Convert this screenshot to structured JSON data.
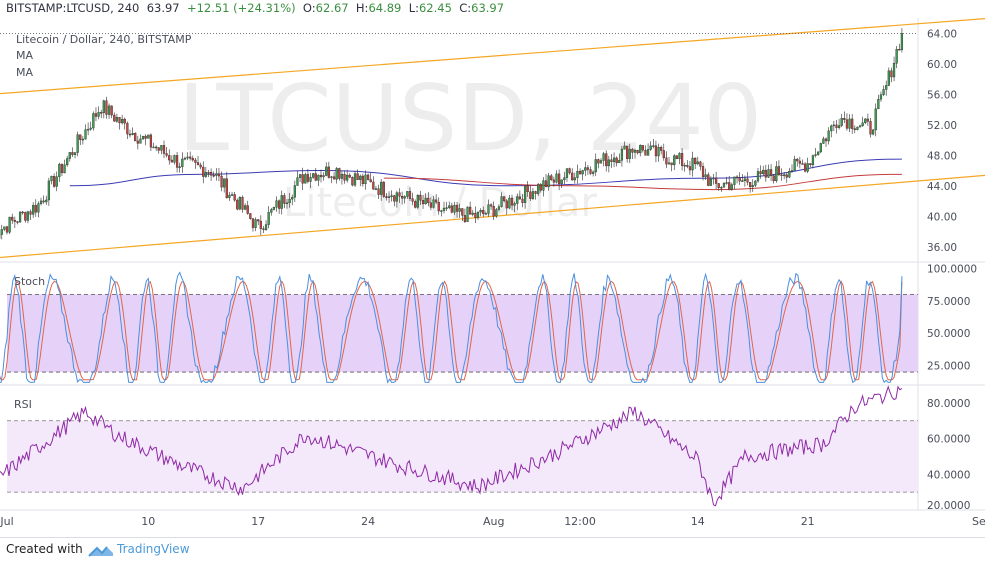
{
  "header": {
    "symbol": "BITSTAMP:LTCUSD, 240",
    "last": "63.97",
    "change": "+12.51 (+24.31%)",
    "open_label": "O:",
    "open": "62.67",
    "high_label": "H:",
    "high": "64.89",
    "low_label": "L:",
    "low": "62.45",
    "close_label": "C:",
    "close": "63.97"
  },
  "legend": {
    "title": "Litecoin / Dollar, 240, BITSTAMP",
    "ma1": "MA",
    "ma2": "MA"
  },
  "watermark": {
    "line1": "LTCUSD, 240",
    "line2": "Litecoin / Dollar"
  },
  "footer": {
    "created_with": "Created with",
    "brand": "TradingView"
  },
  "colors": {
    "up": "#3b9e4f",
    "down": "#c6443f",
    "channel": "#f5a623",
    "ma_blue": "#3b3bb3",
    "ma_red": "#c43c3c",
    "stoch_k": "#4b8fe0",
    "stoch_d": "#e3644a",
    "stoch_band": "#e6d2f8",
    "rsi_line": "#8f2aa6",
    "rsi_band": "#f4e8fb"
  },
  "chart_data": [
    {
      "type": "candlestick",
      "name": "price",
      "title": "Litecoin / Dollar, 240, BITSTAMP",
      "ylim": [
        34,
        66
      ],
      "y_ticks": [
        "64.00",
        "60.00",
        "56.00",
        "52.00",
        "48.00",
        "44.00",
        "40.00",
        "36.00"
      ],
      "x_ticks": [
        "Jul",
        "10",
        "17",
        "24",
        "Aug",
        "12:00",
        "14",
        "21",
        "Sep"
      ],
      "last_price": 63.97,
      "key_points": [
        {
          "t": "Jun 30",
          "close": 37.5
        },
        {
          "t": "Jul 2",
          "close": 41.5
        },
        {
          "t": "Jul 6",
          "close": 54.5
        },
        {
          "t": "Jul 8",
          "close": 51.0
        },
        {
          "t": "Jul 11",
          "close": 47.0
        },
        {
          "t": "Jul 13",
          "close": 46.0
        },
        {
          "t": "Jul 16",
          "close": 38.5
        },
        {
          "t": "Jul 19",
          "close": 45.5
        },
        {
          "t": "Jul 21",
          "close": 46.0
        },
        {
          "t": "Jul 24",
          "close": 43.5
        },
        {
          "t": "Jul 28",
          "close": 40.5
        },
        {
          "t": "Jul 30",
          "close": 40.0
        },
        {
          "t": "Aug 3",
          "close": 44.0
        },
        {
          "t": "Aug 6",
          "close": 46.5
        },
        {
          "t": "Aug 9",
          "close": 49.0
        },
        {
          "t": "Aug 13",
          "close": 46.5
        },
        {
          "t": "Aug 14",
          "close": 44.0
        },
        {
          "t": "Aug 17",
          "close": 45.0
        },
        {
          "t": "Aug 20",
          "close": 47.0
        },
        {
          "t": "Aug 22",
          "close": 53.0
        },
        {
          "t": "Aug 24",
          "close": 51.5
        },
        {
          "t": "Aug 25",
          "close": 57.0
        },
        {
          "t": "Aug 26",
          "close": 63.97
        }
      ],
      "channel_upper": [
        {
          "t": "Jun 30",
          "y": 56.0
        },
        {
          "t": "Sep 4",
          "y": 66.5
        }
      ],
      "channel_lower": [
        {
          "t": "Jun 30",
          "y": 34.5
        },
        {
          "t": "Sep 4",
          "y": 46.0
        }
      ],
      "ma_blue": [
        {
          "t": "Jul 4",
          "y": 44.0
        },
        {
          "t": "Jul 12",
          "y": 45.5
        },
        {
          "t": "Jul 20",
          "y": 46.0
        },
        {
          "t": "Aug 1",
          "y": 44.0
        },
        {
          "t": "Aug 14",
          "y": 45.0
        },
        {
          "t": "Aug 26",
          "y": 47.5
        }
      ],
      "ma_red": [
        {
          "t": "Jul 24",
          "y": 45.0
        },
        {
          "t": "Aug 5",
          "y": 44.0
        },
        {
          "t": "Aug 14",
          "y": 43.5
        },
        {
          "t": "Aug 26",
          "y": 45.5
        }
      ]
    },
    {
      "type": "line",
      "name": "Stoch",
      "ylim": [
        10,
        105
      ],
      "y_ticks": [
        "100.0000",
        "75.0000",
        "50.0000",
        "25.0000"
      ],
      "band": [
        20,
        80
      ],
      "last_k": 94,
      "last_d": 90
    },
    {
      "type": "line",
      "name": "RSI",
      "ylim": [
        20,
        90
      ],
      "y_ticks": [
        "80.0000",
        "60.0000",
        "40.0000",
        "20.0000"
      ],
      "band": [
        30,
        70
      ],
      "key_points": [
        {
          "t": "Jun 30",
          "y": 35
        },
        {
          "t": "Jul 5",
          "y": 75
        },
        {
          "t": "Jul 7",
          "y": 62
        },
        {
          "t": "Jul 11",
          "y": 45
        },
        {
          "t": "Jul 15",
          "y": 32
        },
        {
          "t": "Jul 19",
          "y": 62
        },
        {
          "t": "Jul 25",
          "y": 45
        },
        {
          "t": "Jul 30",
          "y": 33
        },
        {
          "t": "Aug 4",
          "y": 52
        },
        {
          "t": "Aug 9",
          "y": 75
        },
        {
          "t": "Aug 13",
          "y": 48
        },
        {
          "t": "Aug 14",
          "y": 24
        },
        {
          "t": "Aug 16",
          "y": 50
        },
        {
          "t": "Aug 21",
          "y": 57
        },
        {
          "t": "Aug 23",
          "y": 78
        },
        {
          "t": "Aug 26",
          "y": 88
        }
      ],
      "last": 88
    }
  ]
}
